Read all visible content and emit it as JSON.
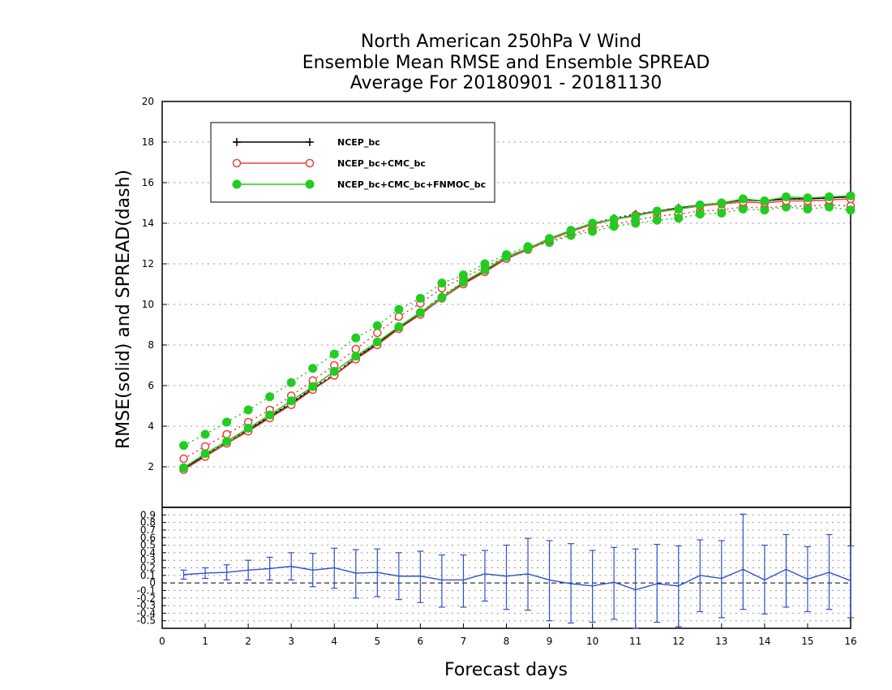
{
  "chart_data": {
    "type": "line",
    "title_lines": [
      "North American 250hPa V Wind",
      "Ensemble Mean RMSE and Ensemble SPREAD",
      "Average For 20180901 - 20181130"
    ],
    "xlabel": "Forecast days",
    "ylabel": "RMSE(solid) and SPREAD(dash)",
    "xlim": [
      0,
      16
    ],
    "ylim": [
      0,
      20
    ],
    "x_ticks": [
      0,
      1,
      2,
      3,
      4,
      5,
      6,
      7,
      8,
      9,
      10,
      11,
      12,
      13,
      14,
      15,
      16
    ],
    "y_ticks": [
      2,
      4,
      6,
      8,
      10,
      12,
      14,
      16,
      18,
      20
    ],
    "grid": "dotted horizontal",
    "legend_placement": "top-left",
    "x": [
      0.5,
      1.0,
      1.5,
      2.0,
      2.5,
      3.0,
      3.5,
      4.0,
      4.5,
      5.0,
      5.5,
      6.0,
      6.5,
      7.0,
      7.5,
      8.0,
      8.5,
      9.0,
      9.5,
      10.0,
      10.5,
      11.0,
      11.5,
      12.0,
      12.5,
      13.0,
      13.5,
      14.0,
      14.5,
      15.0,
      15.5,
      16.0
    ],
    "series": [
      {
        "name": "NCEP_bc",
        "color": "#000000",
        "marker": "plus",
        "rmse": [
          1.9,
          2.55,
          3.15,
          3.8,
          4.45,
          5.1,
          5.85,
          6.5,
          7.35,
          8.05,
          8.85,
          9.55,
          10.35,
          11.05,
          11.65,
          12.25,
          12.7,
          13.2,
          13.6,
          13.95,
          14.2,
          14.4,
          14.6,
          14.75,
          14.9,
          15.0,
          15.15,
          15.1,
          15.2,
          15.2,
          15.25,
          15.3
        ],
        "spread": [
          1.95,
          2.6,
          3.2,
          3.85,
          4.5,
          5.15,
          5.9,
          6.55,
          7.4,
          8.1,
          8.9,
          9.6,
          10.4,
          11.1,
          11.7,
          12.3,
          12.75,
          13.25,
          13.65,
          14.0,
          14.25,
          14.45,
          14.6,
          14.75,
          14.9,
          15.0,
          15.15,
          15.1,
          15.2,
          15.2,
          15.25,
          15.3
        ]
      },
      {
        "name": "NCEP_bc+CMC_bc",
        "color": "#e8403a",
        "marker": "open-circle",
        "rmse": [
          1.85,
          2.5,
          3.15,
          3.75,
          4.4,
          5.05,
          5.8,
          6.5,
          7.3,
          8.0,
          8.8,
          9.5,
          10.3,
          11.0,
          11.6,
          12.25,
          12.7,
          13.2,
          13.6,
          13.95,
          14.2,
          14.4,
          14.55,
          14.7,
          14.85,
          14.95,
          15.05,
          15.0,
          15.1,
          15.1,
          15.15,
          15.2
        ],
        "spread": [
          2.4,
          3.0,
          3.6,
          4.2,
          4.8,
          5.5,
          6.25,
          7.0,
          7.8,
          8.6,
          9.4,
          10.05,
          10.8,
          11.3,
          11.85,
          12.35,
          12.75,
          13.1,
          13.45,
          13.75,
          13.95,
          14.15,
          14.35,
          14.45,
          14.6,
          14.65,
          14.8,
          14.75,
          14.85,
          14.85,
          14.9,
          14.85
        ]
      },
      {
        "name": "NCEP_bc+CMC_bc+FNMOC_bc",
        "color": "#22cc22",
        "marker": "filled-circle",
        "rmse": [
          1.95,
          2.65,
          3.25,
          3.9,
          4.55,
          5.25,
          5.95,
          6.7,
          7.45,
          8.15,
          8.9,
          9.6,
          10.35,
          11.1,
          11.7,
          12.35,
          12.75,
          13.25,
          13.65,
          14.0,
          14.2,
          14.35,
          14.6,
          14.7,
          14.9,
          15.0,
          15.2,
          15.1,
          15.3,
          15.25,
          15.3,
          15.35
        ],
        "spread": [
          3.05,
          3.6,
          4.2,
          4.8,
          5.45,
          6.15,
          6.85,
          7.55,
          8.35,
          8.95,
          9.75,
          10.3,
          11.05,
          11.45,
          12.0,
          12.45,
          12.85,
          13.05,
          13.4,
          13.6,
          13.85,
          14.0,
          14.15,
          14.25,
          14.45,
          14.5,
          14.7,
          14.65,
          14.8,
          14.7,
          14.8,
          14.65
        ]
      }
    ],
    "difference_panel": {
      "color": "#3050d0",
      "ylim": [
        -0.6,
        1.0
      ],
      "y_ticks": [
        -0.5,
        -0.4,
        -0.3,
        -0.2,
        -0.1,
        0,
        0.1,
        0.2,
        0.3,
        0.4,
        0.5,
        0.6,
        0.7,
        0.8,
        0.9
      ],
      "y_tick_labels": [
        "-0.5",
        "-0.4",
        "-0.3",
        "-0.2",
        "-0.1",
        "0",
        "0.1",
        "0.2",
        "0.3",
        "0.4",
        "0.5",
        "0.6",
        "0.7",
        "0.8",
        "0.9"
      ],
      "zero_line": "dashed",
      "values": [
        0.11,
        0.13,
        0.14,
        0.17,
        0.19,
        0.22,
        0.17,
        0.2,
        0.13,
        0.14,
        0.09,
        0.09,
        0.04,
        0.04,
        0.12,
        0.09,
        0.12,
        0.04,
        -0.01,
        -0.04,
        0.01,
        -0.09,
        -0.01,
        -0.04,
        0.1,
        0.06,
        0.18,
        0.04,
        0.18,
        0.05,
        0.14,
        0.03
      ],
      "upper": [
        0.17,
        0.2,
        0.24,
        0.3,
        0.34,
        0.4,
        0.39,
        0.46,
        0.44,
        0.45,
        0.4,
        0.42,
        0.37,
        0.37,
        0.43,
        0.5,
        0.59,
        0.56,
        0.52,
        0.43,
        0.47,
        0.45,
        0.51,
        0.49,
        0.57,
        0.56,
        0.91,
        0.5,
        0.64,
        0.48,
        0.64,
        0.49
      ],
      "lower": [
        0.05,
        0.06,
        0.04,
        0.04,
        0.04,
        0.04,
        -0.05,
        -0.07,
        -0.2,
        -0.18,
        -0.22,
        -0.26,
        -0.32,
        -0.32,
        -0.24,
        -0.35,
        -0.36,
        -0.5,
        -0.53,
        -0.52,
        -0.48,
        -0.6,
        -0.52,
        -0.58,
        -0.38,
        -0.46,
        -0.35,
        -0.41,
        -0.32,
        -0.38,
        -0.35,
        -0.46
      ]
    }
  }
}
